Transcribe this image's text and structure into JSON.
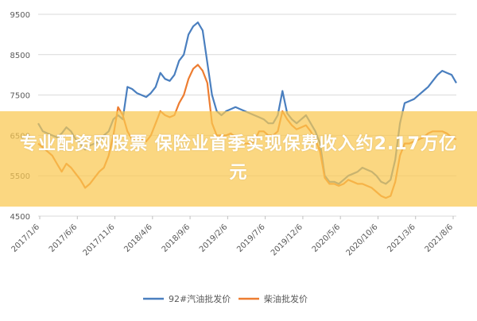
{
  "overlay": {
    "headline": "专业配资网股票 保险业首季实现保费收入约2.17万亿元",
    "background_color": "#f9c23c"
  },
  "chart_data": {
    "type": "line",
    "x_tick_labels": [
      "2017/1/6",
      "2017/6/6",
      "2017/11/6",
      "2018/4/6",
      "2018/9/6",
      "2019/2/6",
      "2019/7/6",
      "2019/12/6",
      "2020/5/6",
      "2020/10/6",
      "2021/3/6",
      "2021/8/6"
    ],
    "y_tick_labels": [
      "9500",
      "8500",
      "7500",
      "6500",
      "5500",
      "4500"
    ],
    "ylim": [
      4500,
      9500
    ],
    "grid": true,
    "legend": "bottom",
    "series": [
      {
        "name": "92#汽油批发价",
        "color": "#4a7fbf",
        "points": [
          [
            0,
            6800
          ],
          [
            1,
            6600
          ],
          [
            2,
            6550
          ],
          [
            3,
            6500
          ],
          [
            4,
            6450
          ],
          [
            5,
            6550
          ],
          [
            6,
            6700
          ],
          [
            7,
            6600
          ],
          [
            8,
            6400
          ],
          [
            9,
            6300
          ],
          [
            10,
            6150
          ],
          [
            11,
            6250
          ],
          [
            12,
            6300
          ],
          [
            13,
            6350
          ],
          [
            14,
            6500
          ],
          [
            15,
            6600
          ],
          [
            16,
            6900
          ],
          [
            17,
            7000
          ],
          [
            18,
            6900
          ],
          [
            19,
            7700
          ],
          [
            20,
            7650
          ],
          [
            21,
            7550
          ],
          [
            22,
            7500
          ],
          [
            23,
            7450
          ],
          [
            24,
            7550
          ],
          [
            25,
            7700
          ],
          [
            26,
            8050
          ],
          [
            27,
            7900
          ],
          [
            28,
            7850
          ],
          [
            29,
            8000
          ],
          [
            30,
            8350
          ],
          [
            31,
            8500
          ],
          [
            32,
            9000
          ],
          [
            33,
            9200
          ],
          [
            34,
            9300
          ],
          [
            35,
            9100
          ],
          [
            36,
            8300
          ],
          [
            37,
            7500
          ],
          [
            38,
            7100
          ],
          [
            39,
            7000
          ],
          [
            40,
            7100
          ],
          [
            41,
            7150
          ],
          [
            42,
            7200
          ],
          [
            43,
            7150
          ],
          [
            44,
            7100
          ],
          [
            45,
            7050
          ],
          [
            46,
            7000
          ],
          [
            47,
            6950
          ],
          [
            48,
            6900
          ],
          [
            49,
            6800
          ],
          [
            50,
            6800
          ],
          [
            51,
            7000
          ],
          [
            52,
            7600
          ],
          [
            53,
            7050
          ],
          [
            54,
            6900
          ],
          [
            55,
            6800
          ],
          [
            56,
            6900
          ],
          [
            57,
            7000
          ],
          [
            58,
            6800
          ],
          [
            59,
            6600
          ],
          [
            60,
            6300
          ],
          [
            61,
            5500
          ],
          [
            62,
            5350
          ],
          [
            63,
            5350
          ],
          [
            64,
            5300
          ],
          [
            65,
            5400
          ],
          [
            66,
            5500
          ],
          [
            67,
            5550
          ],
          [
            68,
            5600
          ],
          [
            69,
            5700
          ],
          [
            70,
            5650
          ],
          [
            71,
            5600
          ],
          [
            72,
            5500
          ],
          [
            73,
            5350
          ],
          [
            74,
            5300
          ],
          [
            75,
            5400
          ],
          [
            76,
            5900
          ],
          [
            77,
            6800
          ],
          [
            78,
            7300
          ],
          [
            79,
            7350
          ],
          [
            80,
            7400
          ],
          [
            81,
            7500
          ],
          [
            82,
            7600
          ],
          [
            83,
            7700
          ],
          [
            84,
            7850
          ],
          [
            85,
            8000
          ],
          [
            86,
            8100
          ],
          [
            87,
            8050
          ],
          [
            88,
            8000
          ],
          [
            89,
            7800
          ]
        ]
      },
      {
        "name": "柴油批发价",
        "color": "#ed7d31",
        "points": [
          [
            0,
            6300
          ],
          [
            1,
            6200
          ],
          [
            2,
            6100
          ],
          [
            3,
            6000
          ],
          [
            4,
            5800
          ],
          [
            5,
            5600
          ],
          [
            6,
            5800
          ],
          [
            7,
            5700
          ],
          [
            8,
            5550
          ],
          [
            9,
            5400
          ],
          [
            10,
            5200
          ],
          [
            11,
            5300
          ],
          [
            12,
            5450
          ],
          [
            13,
            5600
          ],
          [
            14,
            5700
          ],
          [
            15,
            6000
          ],
          [
            16,
            6500
          ],
          [
            17,
            7200
          ],
          [
            18,
            7000
          ],
          [
            19,
            6600
          ],
          [
            20,
            6400
          ],
          [
            21,
            6450
          ],
          [
            22,
            6400
          ],
          [
            23,
            6350
          ],
          [
            24,
            6500
          ],
          [
            25,
            6800
          ],
          [
            26,
            7100
          ],
          [
            27,
            7000
          ],
          [
            28,
            6950
          ],
          [
            29,
            7000
          ],
          [
            30,
            7300
          ],
          [
            31,
            7500
          ],
          [
            32,
            7900
          ],
          [
            33,
            8150
          ],
          [
            34,
            8250
          ],
          [
            35,
            8100
          ],
          [
            36,
            7800
          ],
          [
            37,
            6800
          ],
          [
            38,
            6500
          ],
          [
            39,
            6500
          ],
          [
            40,
            6500
          ],
          [
            41,
            6550
          ],
          [
            42,
            6450
          ],
          [
            43,
            6350
          ],
          [
            44,
            6300
          ],
          [
            45,
            6300
          ],
          [
            46,
            6350
          ],
          [
            47,
            6600
          ],
          [
            48,
            6600
          ],
          [
            49,
            6500
          ],
          [
            50,
            6500
          ],
          [
            51,
            6600
          ],
          [
            52,
            7100
          ],
          [
            53,
            6900
          ],
          [
            54,
            6750
          ],
          [
            55,
            6650
          ],
          [
            56,
            6700
          ],
          [
            57,
            6750
          ],
          [
            58,
            6600
          ],
          [
            59,
            6400
          ],
          [
            60,
            6100
          ],
          [
            61,
            5450
          ],
          [
            62,
            5300
          ],
          [
            63,
            5300
          ],
          [
            64,
            5250
          ],
          [
            65,
            5300
          ],
          [
            66,
            5400
          ],
          [
            67,
            5350
          ],
          [
            68,
            5300
          ],
          [
            69,
            5300
          ],
          [
            70,
            5250
          ],
          [
            71,
            5200
          ],
          [
            72,
            5100
          ],
          [
            73,
            5000
          ],
          [
            74,
            4950
          ],
          [
            75,
            5000
          ],
          [
            76,
            5350
          ],
          [
            77,
            6000
          ],
          [
            78,
            6300
          ],
          [
            79,
            6300
          ],
          [
            80,
            6350
          ],
          [
            81,
            6400
          ],
          [
            82,
            6450
          ],
          [
            83,
            6550
          ],
          [
            84,
            6600
          ],
          [
            85,
            6600
          ],
          [
            86,
            6600
          ],
          [
            87,
            6550
          ],
          [
            88,
            6450
          ],
          [
            89,
            6400
          ]
        ]
      }
    ]
  }
}
